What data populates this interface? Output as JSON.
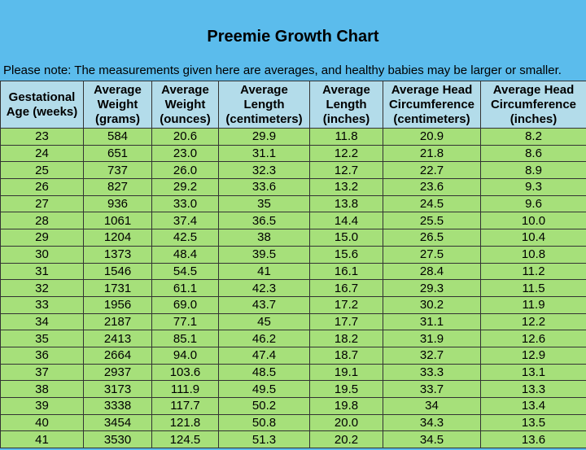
{
  "header": {
    "title": "Preemie Growth Chart",
    "note": "Please note:  The measurements given here are averages, and healthy babies may be larger or smaller."
  },
  "table": {
    "columns": [
      "Gestational Age (weeks)",
      "Average Weight (grams)",
      "Average Weight (ounces)",
      "Average Length (centimeters)",
      "Average Length (inches)",
      "Average Head Circumference (centimeters)",
      "Average Head Circumference (inches)"
    ],
    "rows": [
      [
        "23",
        "584",
        "20.6",
        "29.9",
        "11.8",
        "20.9",
        "8.2"
      ],
      [
        "24",
        "651",
        "23.0",
        "31.1",
        "12.2",
        "21.8",
        "8.6"
      ],
      [
        "25",
        "737",
        "26.0",
        "32.3",
        "12.7",
        "22.7",
        "8.9"
      ],
      [
        "26",
        "827",
        "29.2",
        "33.6",
        "13.2",
        "23.6",
        "9.3"
      ],
      [
        "27",
        "936",
        "33.0",
        "35",
        "13.8",
        "24.5",
        "9.6"
      ],
      [
        "28",
        "1061",
        "37.4",
        "36.5",
        "14.4",
        "25.5",
        "10.0"
      ],
      [
        "29",
        "1204",
        "42.5",
        "38",
        "15.0",
        "26.5",
        "10.4"
      ],
      [
        "30",
        "1373",
        "48.4",
        "39.5",
        "15.6",
        "27.5",
        "10.8"
      ],
      [
        "31",
        "1546",
        "54.5",
        "41",
        "16.1",
        "28.4",
        "11.2"
      ],
      [
        "32",
        "1731",
        "61.1",
        "42.3",
        "16.7",
        "29.3",
        "11.5"
      ],
      [
        "33",
        "1956",
        "69.0",
        "43.7",
        "17.2",
        "30.2",
        "11.9"
      ],
      [
        "34",
        "2187",
        "77.1",
        "45",
        "17.7",
        "31.1",
        "12.2"
      ],
      [
        "35",
        "2413",
        "85.1",
        "46.2",
        "18.2",
        "31.9",
        "12.6"
      ],
      [
        "36",
        "2664",
        "94.0",
        "47.4",
        "18.7",
        "32.7",
        "12.9"
      ],
      [
        "37",
        "2937",
        "103.6",
        "48.5",
        "19.1",
        "33.3",
        "13.1"
      ],
      [
        "38",
        "3173",
        "111.9",
        "49.5",
        "19.5",
        "33.7",
        "13.3"
      ],
      [
        "39",
        "3338",
        "117.7",
        "50.2",
        "19.8",
        "34",
        "13.4"
      ],
      [
        "40",
        "3454",
        "121.8",
        "50.8",
        "20.0",
        "34.3",
        "13.5"
      ],
      [
        "41",
        "3530",
        "124.5",
        "51.3",
        "20.2",
        "34.5",
        "13.6"
      ]
    ]
  }
}
